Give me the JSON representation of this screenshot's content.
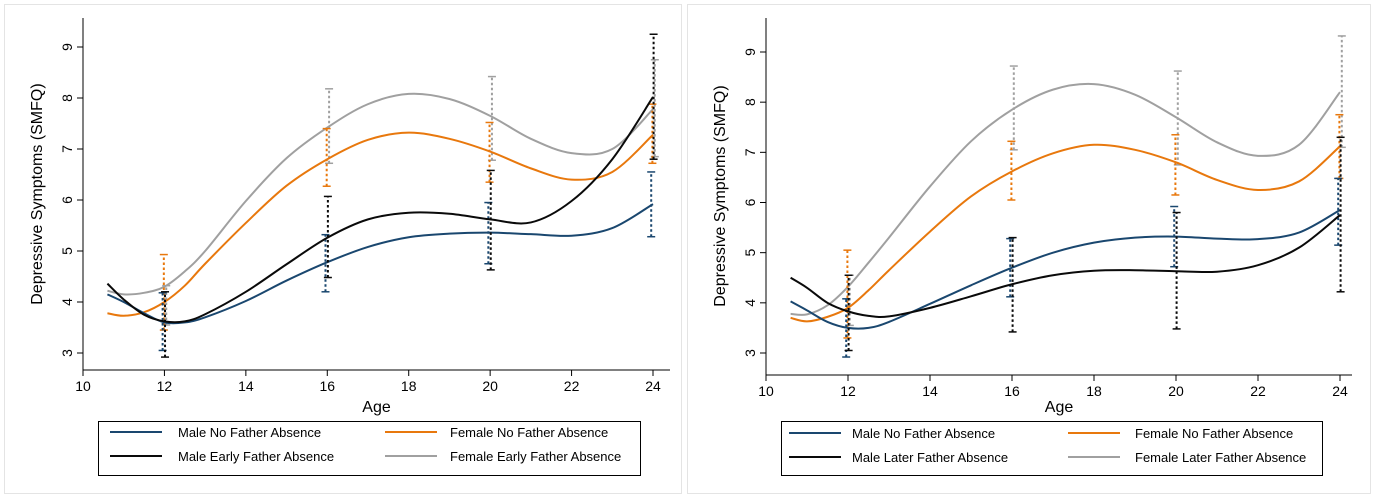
{
  "colors": {
    "blue": "#1a476f",
    "orange": "#e8780d",
    "black": "#0a0a0a",
    "gray": "#a0a0a0",
    "frame": "#e4e4e4",
    "axis": "#000000"
  },
  "chart_data": [
    {
      "type": "line",
      "xlabel": "Age",
      "ylabel": "Depressive Symptoms (SMFQ)",
      "xlim": [
        10,
        24
      ],
      "ylim": [
        3,
        9
      ],
      "xticks": [
        10,
        12,
        14,
        16,
        18,
        20,
        22,
        24
      ],
      "yticks": [
        3,
        4,
        5,
        6,
        7,
        8,
        9
      ],
      "grid": false,
      "legend_position": "bottom",
      "series": [
        {
          "name": "Male No Father Absence",
          "color": "#1a476f",
          "curve": [
            [
              10.6,
              4.15
            ],
            [
              11,
              4.0
            ],
            [
              11.5,
              3.78
            ],
            [
              12,
              3.6
            ],
            [
              12.5,
              3.6
            ],
            [
              13,
              3.7
            ],
            [
              14,
              4.02
            ],
            [
              15,
              4.42
            ],
            [
              16,
              4.78
            ],
            [
              17,
              5.08
            ],
            [
              18,
              5.27
            ],
            [
              19,
              5.34
            ],
            [
              20,
              5.36
            ],
            [
              21,
              5.33
            ],
            [
              22,
              5.3
            ],
            [
              23,
              5.45
            ],
            [
              24,
              5.92
            ]
          ],
          "ci": [
            {
              "x": 12,
              "lo": 3.05,
              "hi": 4.18
            },
            {
              "x": 16,
              "lo": 4.2,
              "hi": 5.32
            },
            {
              "x": 20,
              "lo": 4.75,
              "hi": 5.95
            },
            {
              "x": 24,
              "lo": 5.28,
              "hi": 6.55
            }
          ]
        },
        {
          "name": "Female No Father Absence",
          "color": "#e8780d",
          "curve": [
            [
              10.6,
              3.78
            ],
            [
              11,
              3.73
            ],
            [
              11.5,
              3.8
            ],
            [
              12,
              4.0
            ],
            [
              12.5,
              4.32
            ],
            [
              13,
              4.75
            ],
            [
              14,
              5.55
            ],
            [
              15,
              6.28
            ],
            [
              16,
              6.8
            ],
            [
              17,
              7.18
            ],
            [
              18,
              7.32
            ],
            [
              19,
              7.2
            ],
            [
              20,
              6.95
            ],
            [
              21,
              6.62
            ],
            [
              22,
              6.4
            ],
            [
              23,
              6.55
            ],
            [
              24,
              7.28
            ]
          ],
          "ci": [
            {
              "x": 12,
              "lo": 3.45,
              "hi": 4.93
            },
            {
              "x": 16,
              "lo": 6.27,
              "hi": 7.4
            },
            {
              "x": 20,
              "lo": 6.35,
              "hi": 7.52
            },
            {
              "x": 24,
              "lo": 6.72,
              "hi": 7.88
            }
          ]
        },
        {
          "name": "Male Early Father Absence",
          "color": "#0a0a0a",
          "curve": [
            [
              10.6,
              4.36
            ],
            [
              11,
              4.05
            ],
            [
              11.5,
              3.75
            ],
            [
              12,
              3.62
            ],
            [
              12.5,
              3.62
            ],
            [
              13,
              3.76
            ],
            [
              14,
              4.2
            ],
            [
              15,
              4.74
            ],
            [
              16,
              5.26
            ],
            [
              17,
              5.62
            ],
            [
              18,
              5.75
            ],
            [
              19,
              5.73
            ],
            [
              20,
              5.62
            ],
            [
              21,
              5.56
            ],
            [
              22,
              5.98
            ],
            [
              23,
              6.8
            ],
            [
              24,
              8.02
            ]
          ],
          "ci": [
            {
              "x": 12,
              "lo": 2.92,
              "hi": 4.2
            },
            {
              "x": 16,
              "lo": 4.48,
              "hi": 6.07
            },
            {
              "x": 20,
              "lo": 4.63,
              "hi": 6.58
            },
            {
              "x": 24,
              "lo": 6.8,
              "hi": 9.25
            }
          ]
        },
        {
          "name": "Female Early Father Absence",
          "color": "#a0a0a0",
          "curve": [
            [
              10.6,
              4.22
            ],
            [
              11,
              4.15
            ],
            [
              11.5,
              4.18
            ],
            [
              12,
              4.3
            ],
            [
              12.5,
              4.6
            ],
            [
              13,
              5.0
            ],
            [
              14,
              5.98
            ],
            [
              15,
              6.82
            ],
            [
              16,
              7.42
            ],
            [
              17,
              7.88
            ],
            [
              18,
              8.08
            ],
            [
              19,
              7.98
            ],
            [
              20,
              7.65
            ],
            [
              21,
              7.2
            ],
            [
              22,
              6.92
            ],
            [
              23,
              7.0
            ],
            [
              24,
              7.78
            ]
          ],
          "ci": [
            {
              "x": 12,
              "lo": 3.55,
              "hi": 4.32
            },
            {
              "x": 16,
              "lo": 6.72,
              "hi": 8.18
            },
            {
              "x": 20,
              "lo": 6.78,
              "hi": 8.42
            },
            {
              "x": 24,
              "lo": 6.85,
              "hi": 8.75
            }
          ]
        }
      ]
    },
    {
      "type": "line",
      "xlabel": "Age",
      "ylabel": "Depressive Symptoms (SMFQ)",
      "xlim": [
        10,
        24
      ],
      "ylim": [
        3,
        9
      ],
      "xticks": [
        10,
        12,
        14,
        16,
        18,
        20,
        22,
        24
      ],
      "yticks": [
        3,
        4,
        5,
        6,
        7,
        8,
        9
      ],
      "grid": false,
      "legend_position": "bottom",
      "series": [
        {
          "name": "Male No Father Absence",
          "color": "#1a476f",
          "curve": [
            [
              10.6,
              4.03
            ],
            [
              11,
              3.85
            ],
            [
              11.5,
              3.62
            ],
            [
              12,
              3.5
            ],
            [
              12.5,
              3.5
            ],
            [
              13,
              3.62
            ],
            [
              14,
              3.98
            ],
            [
              15,
              4.35
            ],
            [
              16,
              4.7
            ],
            [
              17,
              5.0
            ],
            [
              18,
              5.2
            ],
            [
              19,
              5.3
            ],
            [
              20,
              5.32
            ],
            [
              21,
              5.28
            ],
            [
              22,
              5.27
            ],
            [
              23,
              5.4
            ],
            [
              24,
              5.85
            ]
          ],
          "ci": [
            {
              "x": 12,
              "lo": 2.92,
              "hi": 4.08
            },
            {
              "x": 16,
              "lo": 4.12,
              "hi": 5.28
            },
            {
              "x": 20,
              "lo": 4.72,
              "hi": 5.92
            },
            {
              "x": 24,
              "lo": 5.15,
              "hi": 6.48
            }
          ]
        },
        {
          "name": "Female No Father Absence",
          "color": "#e8780d",
          "curve": [
            [
              10.6,
              3.7
            ],
            [
              11,
              3.63
            ],
            [
              11.5,
              3.72
            ],
            [
              12,
              3.9
            ],
            [
              12.5,
              4.25
            ],
            [
              13,
              4.65
            ],
            [
              14,
              5.42
            ],
            [
              15,
              6.12
            ],
            [
              16,
              6.62
            ],
            [
              17,
              6.98
            ],
            [
              18,
              7.15
            ],
            [
              19,
              7.05
            ],
            [
              20,
              6.8
            ],
            [
              21,
              6.45
            ],
            [
              22,
              6.25
            ],
            [
              23,
              6.42
            ],
            [
              24,
              7.12
            ]
          ],
          "ci": [
            {
              "x": 12,
              "lo": 3.3,
              "hi": 5.05
            },
            {
              "x": 16,
              "lo": 6.05,
              "hi": 7.22
            },
            {
              "x": 20,
              "lo": 6.15,
              "hi": 7.35
            },
            {
              "x": 24,
              "lo": 6.48,
              "hi": 7.75
            }
          ]
        },
        {
          "name": "Male Later Father Absence",
          "color": "#0a0a0a",
          "curve": [
            [
              10.6,
              4.5
            ],
            [
              11,
              4.3
            ],
            [
              11.5,
              4.0
            ],
            [
              12,
              3.83
            ],
            [
              12.5,
              3.74
            ],
            [
              13,
              3.73
            ],
            [
              14,
              3.9
            ],
            [
              15,
              4.13
            ],
            [
              16,
              4.37
            ],
            [
              17,
              4.55
            ],
            [
              18,
              4.64
            ],
            [
              19,
              4.65
            ],
            [
              20,
              4.63
            ],
            [
              21,
              4.62
            ],
            [
              22,
              4.75
            ],
            [
              23,
              5.1
            ],
            [
              24,
              5.75
            ]
          ],
          "ci": [
            {
              "x": 12,
              "lo": 3.05,
              "hi": 4.55
            },
            {
              "x": 16,
              "lo": 3.42,
              "hi": 5.3
            },
            {
              "x": 20,
              "lo": 3.48,
              "hi": 5.8
            },
            {
              "x": 24,
              "lo": 4.22,
              "hi": 7.3
            }
          ]
        },
        {
          "name": "Female Later Father Absence",
          "color": "#a0a0a0",
          "curve": [
            [
              10.6,
              3.78
            ],
            [
              11,
              3.77
            ],
            [
              11.5,
              3.95
            ],
            [
              12,
              4.32
            ],
            [
              12.5,
              4.8
            ],
            [
              13,
              5.3
            ],
            [
              14,
              6.32
            ],
            [
              15,
              7.22
            ],
            [
              16,
              7.85
            ],
            [
              17,
              8.25
            ],
            [
              18,
              8.36
            ],
            [
              19,
              8.15
            ],
            [
              20,
              7.7
            ],
            [
              21,
              7.2
            ],
            [
              22,
              6.93
            ],
            [
              23,
              7.15
            ],
            [
              24,
              8.2
            ]
          ],
          "ci": [
            {
              "x": 12,
              "lo": 3.55,
              "hi": 4.55
            },
            {
              "x": 16,
              "lo": 7.05,
              "hi": 8.72
            },
            {
              "x": 20,
              "lo": 6.75,
              "hi": 8.62
            },
            {
              "x": 24,
              "lo": 7.1,
              "hi": 9.32
            }
          ]
        }
      ]
    }
  ]
}
